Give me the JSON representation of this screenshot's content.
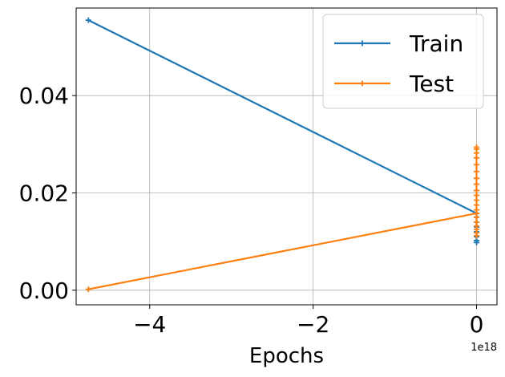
{
  "chart_data": {
    "type": "line",
    "title": "",
    "xlabel": "Epochs",
    "ylabel": "",
    "x_offset_label": "1e18",
    "xlim": [
      -4.9,
      0.25
    ],
    "ylim": [
      -0.003,
      0.058
    ],
    "x_ticks": [
      {
        "value": -4,
        "label": "−4"
      },
      {
        "value": -2,
        "label": "−2"
      },
      {
        "value": 0,
        "label": "0"
      }
    ],
    "y_ticks": [
      {
        "value": 0.0,
        "label": "0.00"
      },
      {
        "value": 0.02,
        "label": "0.02"
      },
      {
        "value": 0.04,
        "label": "0.04"
      }
    ],
    "grid": true,
    "legend_position": "top-right",
    "series": [
      {
        "name": "Train",
        "color": "#1f77b4",
        "x": [
          -4.75,
          0,
          0,
          0,
          0,
          0,
          0,
          0,
          0,
          0
        ],
        "y": [
          0.0555,
          0.0158,
          0.0098,
          0.0102,
          0.011,
          0.012,
          0.013,
          0.014,
          0.015,
          0.0158
        ]
      },
      {
        "name": "Test",
        "color": "#ff7f0e",
        "x": [
          -4.75,
          0,
          0,
          0,
          0,
          0,
          0,
          0,
          0,
          0,
          0,
          0,
          0,
          0,
          0,
          0,
          0,
          0,
          0,
          0,
          0
        ],
        "y": [
          0.0002,
          0.0158,
          0.0294,
          0.029,
          0.0282,
          0.0272,
          0.0258,
          0.0244,
          0.023,
          0.0218,
          0.0205,
          0.0195,
          0.0185,
          0.0175,
          0.0165,
          0.015,
          0.014,
          0.0132,
          0.0125,
          0.0118,
          0.0112
        ]
      }
    ]
  }
}
